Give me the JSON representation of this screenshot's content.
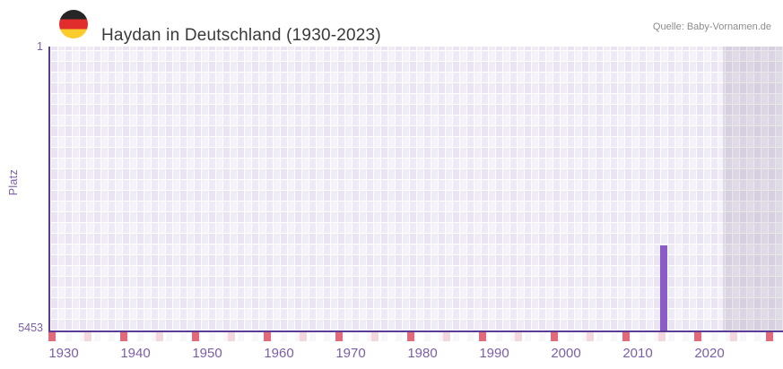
{
  "header": {
    "title": "Haydan in Deutschland (1930-2023)",
    "source": "Quelle: Baby-Vornamen.de",
    "flag_icon": "german-flag-icon",
    "flag_colors": [
      "#262626",
      "#E22D2D",
      "#FCCB2C"
    ]
  },
  "chart_data": {
    "type": "bar",
    "title": "Haydan in Deutschland (1930-2023)",
    "xlabel": "",
    "ylabel": "Platz",
    "x_range": [
      1930,
      2023
    ],
    "y_axis": {
      "top_label": "1",
      "bottom_label": "5453",
      "min": 1,
      "max": 5453,
      "inverted": true
    },
    "x_tick_labels": [
      "1930",
      "1940",
      "1950",
      "1960",
      "1970",
      "1980",
      "1990",
      "2000",
      "2010",
      "2020"
    ],
    "decade_tick_years": [
      1930,
      1940,
      1950,
      1960,
      1970,
      1980,
      1990,
      2000,
      2010,
      2020,
      2030
    ],
    "half_decade_tick_years": [
      1935,
      1945,
      1955,
      1965,
      1975,
      1985,
      1995,
      2005,
      2015,
      2025
    ],
    "series": [
      {
        "name": "Platz",
        "points": [
          {
            "year": 2015,
            "platz": 3800
          }
        ]
      }
    ],
    "no_data_region": {
      "start_year": 2024
    },
    "grid": true,
    "legend": false,
    "colors": {
      "bar": "#8B5CC6",
      "axis": "#5A3C96",
      "tick_decade": "#E0697A",
      "tick_half_decade": "#F2D8DE",
      "labels": "#7B5EA7",
      "plot_bg": "#F5F2FB",
      "no_data_overlay": "rgba(96,85,115,0.14)",
      "title": "#3A3A3A",
      "source": "#8C8C8C"
    }
  }
}
